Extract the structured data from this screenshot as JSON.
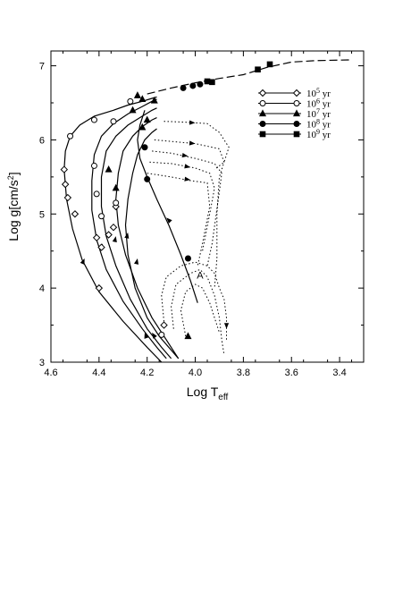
{
  "chart_data": {
    "type": "line",
    "xlabel": "Log T",
    "xlabel_sub": "eff",
    "ylabel": "Log g[cm/s",
    "ylabel_sup": "2",
    "ylabel_end": "]",
    "xlim": [
      4.6,
      3.3
    ],
    "ylim": [
      3.0,
      7.2
    ],
    "x_ticks": [
      4.6,
      4.4,
      4.2,
      4.0,
      3.8,
      3.6,
      3.4
    ],
    "x_tick_labels": [
      "4.6",
      "4.4",
      "4.2",
      "4.0",
      "3.8",
      "3.6",
      "3.4"
    ],
    "y_ticks": [
      3,
      4,
      5,
      6,
      7
    ],
    "y_tick_labels": [
      "3",
      "4",
      "5",
      "6",
      "7"
    ],
    "grid": false,
    "legend_position": "top-right",
    "legend": [
      {
        "base": "10",
        "exp": "5",
        "unit": " yr",
        "marker": "open-diamond"
      },
      {
        "base": "10",
        "exp": "6",
        "unit": " yr",
        "marker": "open-circle"
      },
      {
        "base": "10",
        "exp": "7",
        "unit": " yr",
        "marker": "filled-triangle"
      },
      {
        "base": "10",
        "exp": "8",
        "unit": " yr",
        "marker": "filled-circle"
      },
      {
        "base": "10",
        "exp": "9",
        "unit": " yr",
        "marker": "filled-square"
      }
    ],
    "annotations": [
      {
        "text": "A",
        "x": 3.98,
        "y": 4.13
      }
    ],
    "series": [
      {
        "style": "solid",
        "points": [
          [
            4.14,
            3.0
          ],
          [
            4.2,
            3.2
          ],
          [
            4.3,
            3.55
          ],
          [
            4.4,
            3.95
          ],
          [
            4.47,
            4.38
          ],
          [
            4.51,
            4.8
          ],
          [
            4.535,
            5.2
          ],
          [
            4.545,
            5.6
          ],
          [
            4.54,
            5.85
          ],
          [
            4.52,
            6.05
          ],
          [
            4.48,
            6.2
          ],
          [
            4.42,
            6.32
          ],
          [
            4.34,
            6.4
          ],
          [
            4.28,
            6.47
          ],
          [
            4.22,
            6.52
          ],
          [
            4.18,
            6.56
          ],
          [
            4.16,
            6.58
          ]
        ]
      },
      {
        "style": "solid",
        "points": [
          [
            4.12,
            3.05
          ],
          [
            4.16,
            3.2
          ],
          [
            4.22,
            3.45
          ],
          [
            4.3,
            3.82
          ],
          [
            4.37,
            4.25
          ],
          [
            4.41,
            4.65
          ],
          [
            4.43,
            5.05
          ],
          [
            4.43,
            5.45
          ],
          [
            4.42,
            5.8
          ],
          [
            4.39,
            6.05
          ],
          [
            4.34,
            6.22
          ],
          [
            4.28,
            6.35
          ],
          [
            4.22,
            6.45
          ],
          [
            4.18,
            6.52
          ],
          [
            4.16,
            6.55
          ]
        ]
      },
      {
        "style": "solid",
        "points": [
          [
            4.1,
            3.05
          ],
          [
            4.14,
            3.2
          ],
          [
            4.2,
            3.45
          ],
          [
            4.27,
            3.85
          ],
          [
            4.33,
            4.3
          ],
          [
            4.37,
            4.7
          ],
          [
            4.39,
            5.1
          ],
          [
            4.39,
            5.5
          ],
          [
            4.37,
            5.85
          ],
          [
            4.33,
            6.05
          ],
          [
            4.28,
            6.2
          ],
          [
            4.22,
            6.32
          ],
          [
            4.18,
            6.4
          ],
          [
            4.16,
            6.43
          ]
        ]
      },
      {
        "style": "solid",
        "points": [
          [
            4.07,
            3.05
          ],
          [
            4.12,
            3.3
          ],
          [
            4.18,
            3.6
          ],
          [
            4.24,
            4.0
          ],
          [
            4.29,
            4.45
          ],
          [
            4.32,
            4.85
          ],
          [
            4.33,
            5.2
          ],
          [
            4.32,
            5.55
          ],
          [
            4.3,
            5.85
          ],
          [
            4.26,
            6.05
          ],
          [
            4.22,
            6.18
          ],
          [
            4.18,
            6.27
          ],
          [
            4.16,
            6.3
          ]
        ]
      },
      {
        "style": "solid",
        "points": [
          [
            4.07,
            3.05
          ],
          [
            4.15,
            3.35
          ],
          [
            4.2,
            3.6
          ],
          [
            4.25,
            4.0
          ],
          [
            4.28,
            4.45
          ],
          [
            4.29,
            4.85
          ],
          [
            4.28,
            5.2
          ],
          [
            4.26,
            5.55
          ],
          [
            4.24,
            5.8
          ],
          [
            4.21,
            6.0
          ],
          [
            4.18,
            6.1
          ],
          [
            4.16,
            6.15
          ]
        ]
      },
      {
        "style": "solid",
        "points": [
          [
            3.99,
            3.8
          ],
          [
            4.02,
            4.1
          ],
          [
            4.06,
            4.45
          ],
          [
            4.11,
            4.85
          ],
          [
            4.16,
            5.2
          ],
          [
            4.2,
            5.5
          ],
          [
            4.23,
            5.75
          ],
          [
            4.24,
            6.0
          ],
          [
            4.23,
            6.2
          ],
          [
            4.21,
            6.4
          ]
        ]
      },
      {
        "style": "dash",
        "points": [
          [
            4.2,
            6.62
          ],
          [
            4.1,
            6.7
          ],
          [
            4.0,
            6.77
          ],
          [
            3.9,
            6.83
          ],
          [
            3.8,
            6.88
          ],
          [
            3.7,
            6.98
          ],
          [
            3.6,
            7.05
          ],
          [
            3.5,
            7.07
          ],
          [
            3.35,
            7.08
          ]
        ]
      },
      {
        "style": "dot",
        "points": [
          [
            4.13,
            6.25
          ],
          [
            4.05,
            6.24
          ],
          [
            3.95,
            6.22
          ],
          [
            3.9,
            6.1
          ],
          [
            3.86,
            5.9
          ],
          [
            3.88,
            5.7
          ],
          [
            3.92,
            5.6
          ]
        ]
      },
      {
        "style": "dot",
        "points": [
          [
            4.17,
            6.0
          ],
          [
            4.1,
            5.98
          ],
          [
            4.0,
            5.95
          ],
          [
            3.9,
            5.88
          ],
          [
            3.88,
            5.7
          ],
          [
            3.9,
            5.5
          ],
          [
            3.91,
            5.0
          ],
          [
            3.91,
            4.4
          ],
          [
            3.92,
            4.0
          ]
        ]
      },
      {
        "style": "dot",
        "points": [
          [
            4.18,
            5.85
          ],
          [
            4.1,
            5.82
          ],
          [
            4.0,
            5.75
          ],
          [
            3.92,
            5.68
          ],
          [
            3.89,
            5.55
          ],
          [
            3.9,
            5.3
          ],
          [
            3.93,
            4.6
          ],
          [
            3.95,
            4.3
          ]
        ]
      },
      {
        "style": "dot",
        "points": [
          [
            4.19,
            5.7
          ],
          [
            4.1,
            5.68
          ],
          [
            4.0,
            5.62
          ],
          [
            3.94,
            5.55
          ],
          [
            3.92,
            5.35
          ],
          [
            3.94,
            5.0
          ],
          [
            3.97,
            4.5
          ]
        ]
      },
      {
        "style": "dot",
        "points": [
          [
            4.2,
            5.55
          ],
          [
            4.1,
            5.5
          ],
          [
            4.02,
            5.45
          ],
          [
            3.95,
            5.42
          ],
          [
            3.94,
            5.1
          ],
          [
            3.97,
            4.6
          ],
          [
            3.99,
            4.3
          ]
        ]
      },
      {
        "style": "dot",
        "points": [
          [
            4.13,
            3.55
          ],
          [
            4.14,
            3.9
          ],
          [
            4.12,
            4.15
          ],
          [
            4.06,
            4.3
          ],
          [
            4.0,
            4.35
          ],
          [
            3.95,
            4.3
          ],
          [
            3.92,
            4.2
          ],
          [
            3.9,
            4.0
          ],
          [
            3.88,
            3.85
          ],
          [
            3.87,
            3.6
          ],
          [
            3.87,
            3.3
          ]
        ]
      },
      {
        "style": "dot",
        "points": [
          [
            4.09,
            3.45
          ],
          [
            4.1,
            3.75
          ],
          [
            4.08,
            4.05
          ],
          [
            4.02,
            4.2
          ],
          [
            3.98,
            4.25
          ],
          [
            3.95,
            4.15
          ],
          [
            3.92,
            3.9
          ],
          [
            3.9,
            3.6
          ],
          [
            3.89,
            3.3
          ],
          [
            3.88,
            3.1
          ]
        ]
      },
      {
        "style": "dot",
        "points": [
          [
            4.04,
            3.35
          ],
          [
            4.06,
            3.7
          ],
          [
            4.04,
            3.95
          ],
          [
            4.0,
            4.05
          ],
          [
            3.97,
            4.0
          ],
          [
            3.94,
            3.8
          ],
          [
            3.92,
            3.6
          ],
          [
            3.9,
            3.4
          ]
        ]
      }
    ],
    "markers": [
      {
        "type": "open-diamond",
        "points": [
          [
            4.545,
            5.6
          ],
          [
            4.54,
            5.4
          ],
          [
            4.53,
            5.22
          ],
          [
            4.5,
            5.0
          ],
          [
            4.41,
            4.68
          ],
          [
            4.39,
            4.55
          ],
          [
            4.36,
            4.72
          ],
          [
            4.34,
            4.82
          ],
          [
            4.33,
            5.1
          ],
          [
            4.4,
            4.0
          ],
          [
            4.13,
            3.5
          ]
        ]
      },
      {
        "type": "open-circle",
        "points": [
          [
            4.52,
            6.05
          ],
          [
            4.42,
            6.27
          ],
          [
            4.34,
            6.25
          ],
          [
            4.27,
            6.52
          ],
          [
            4.42,
            5.65
          ],
          [
            4.41,
            5.27
          ],
          [
            4.39,
            4.97
          ],
          [
            4.33,
            5.15
          ],
          [
            4.14,
            3.37
          ]
        ]
      },
      {
        "type": "filled-triangle",
        "points": [
          [
            4.36,
            5.6
          ],
          [
            4.33,
            5.35
          ],
          [
            4.03,
            3.35
          ],
          [
            4.22,
            6.17
          ],
          [
            4.2,
            6.27
          ],
          [
            4.26,
            6.4
          ],
          [
            4.17,
            6.53
          ],
          [
            4.22,
            6.55
          ],
          [
            4.24,
            6.6
          ]
        ]
      },
      {
        "type": "filled-circle",
        "points": [
          [
            4.21,
            5.9
          ],
          [
            4.2,
            5.47
          ],
          [
            4.03,
            4.4
          ],
          [
            4.05,
            6.7
          ],
          [
            4.01,
            6.73
          ],
          [
            3.98,
            6.75
          ]
        ]
      },
      {
        "type": "filled-square",
        "points": [
          [
            3.95,
            6.79
          ],
          [
            3.93,
            6.78
          ],
          [
            3.74,
            6.95
          ],
          [
            3.69,
            7.02
          ]
        ]
      }
    ],
    "arrows": [
      {
        "from": [
          4.48,
          4.25
        ],
        "to": [
          4.46,
          4.4
        ]
      },
      {
        "from": [
          4.4,
          4.45
        ],
        "to": [
          4.385,
          4.6
        ]
      },
      {
        "from": [
          4.34,
          4.55
        ],
        "to": [
          4.33,
          4.7
        ]
      },
      {
        "from": [
          4.29,
          4.6
        ],
        "to": [
          4.28,
          4.75
        ]
      },
      {
        "from": [
          4.25,
          4.25
        ],
        "to": [
          4.24,
          4.4
        ]
      },
      {
        "from": [
          4.09,
          4.85
        ],
        "to": [
          4.12,
          4.95
        ]
      },
      {
        "from": [
          4.2,
          3.3
        ],
        "to": [
          4.21,
          3.4
        ]
      },
      {
        "from": [
          4.16,
          3.3
        ],
        "to": [
          4.18,
          3.4
        ]
      },
      {
        "from": [
          4.06,
          6.24
        ],
        "to": [
          4.0,
          6.23
        ]
      },
      {
        "from": [
          4.07,
          5.97
        ],
        "to": [
          4.0,
          5.95
        ]
      },
      {
        "from": [
          4.1,
          5.82
        ],
        "to": [
          4.03,
          5.78
        ]
      },
      {
        "from": [
          4.1,
          5.68
        ],
        "to": [
          4.02,
          5.63
        ]
      },
      {
        "from": [
          4.1,
          5.5
        ],
        "to": [
          4.02,
          5.46
        ]
      },
      {
        "from": [
          3.87,
          3.6
        ],
        "to": [
          3.87,
          3.45
        ]
      }
    ]
  }
}
